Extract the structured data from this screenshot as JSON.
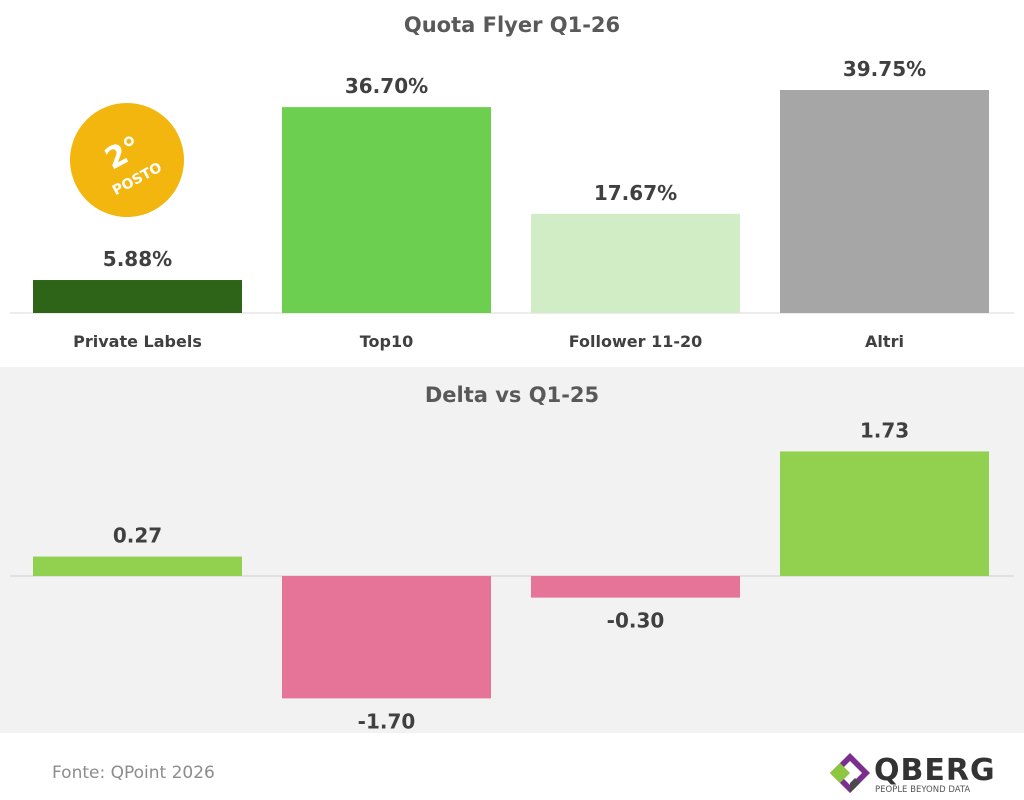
{
  "chart_data": [
    {
      "type": "bar",
      "title": "Quota Flyer Q1-26",
      "categories": [
        "Private Labels",
        "Top10",
        "Follower 11-20",
        "Altri"
      ],
      "values": [
        5.88,
        36.7,
        17.67,
        39.75
      ],
      "value_labels": [
        "5.88%",
        "36.70%",
        "17.67%",
        "39.75%"
      ],
      "colors": [
        "#2e6417",
        "#6ccf4f",
        "#d0edc5",
        "#a6a6a6"
      ],
      "ylim": [
        0,
        39.75
      ],
      "grid": false,
      "badge": {
        "rank": "2°",
        "text": "POSTO",
        "color": "#f2b60f"
      }
    },
    {
      "type": "bar",
      "title": "Delta vs Q1-25",
      "categories": [
        "Private Labels",
        "Top10",
        "Follower 11-20",
        "Altri"
      ],
      "values": [
        0.27,
        -1.7,
        -0.3,
        1.73
      ],
      "value_labels": [
        "0.27",
        "-1.70",
        "-0.30",
        "1.73"
      ],
      "colors": {
        "positive": "#92d050",
        "negative": "#e57498"
      },
      "ylim": [
        -1.7,
        1.73
      ],
      "grid": false
    }
  ],
  "footer": {
    "source": "Fonte: QPoint 2026",
    "logo_name": "QBERG",
    "logo_tagline": "PEOPLE BEYOND DATA"
  }
}
